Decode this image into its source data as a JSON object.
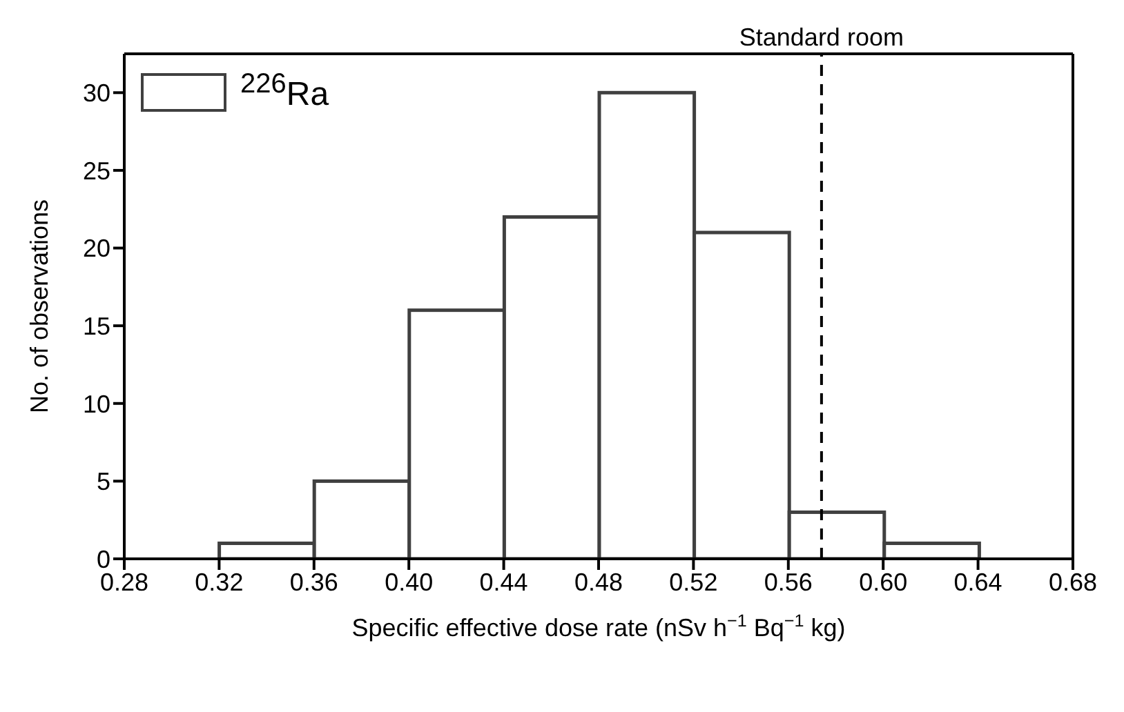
{
  "chart_data": {
    "type": "histogram",
    "xlabel": "Specific effective dose rate (nSv h$^{−1}$ Bq$^{−1}$ kg)",
    "ylabel": "No. of observations",
    "bins": [
      0.32,
      0.36,
      0.4,
      0.44,
      0.48,
      0.52,
      0.56,
      0.6,
      0.64
    ],
    "series": [
      {
        "name": "$^{226}$Ra",
        "color": "#ffffff",
        "values": [
          1,
          5,
          16,
          22,
          30,
          21,
          3,
          1
        ]
      }
    ],
    "xlim": [
      0.28,
      0.68
    ],
    "xticks": [
      {
        "value": 0.28,
        "label": "0.28"
      },
      {
        "value": 0.32,
        "label": "0.32"
      },
      {
        "value": 0.36,
        "label": "0.36"
      },
      {
        "value": 0.4,
        "label": "0.40"
      },
      {
        "value": 0.44,
        "label": "0.44"
      },
      {
        "value": 0.48,
        "label": "0.48"
      },
      {
        "value": 0.52,
        "label": "0.52"
      },
      {
        "value": 0.56,
        "label": "0.56"
      },
      {
        "value": 0.6,
        "label": "0.60"
      },
      {
        "value": 0.64,
        "label": "0.64"
      },
      {
        "value": 0.68,
        "label": "0.68"
      }
    ],
    "ylim": [
      0,
      32.5
    ],
    "yticks": [
      0,
      5,
      10,
      15,
      20,
      25,
      30
    ],
    "ref_lines": [
      {
        "axis": "x",
        "value": 0.574,
        "label": "Standard room",
        "line_style": "dashed",
        "color": "#000000"
      }
    ],
    "legend": "top left"
  }
}
